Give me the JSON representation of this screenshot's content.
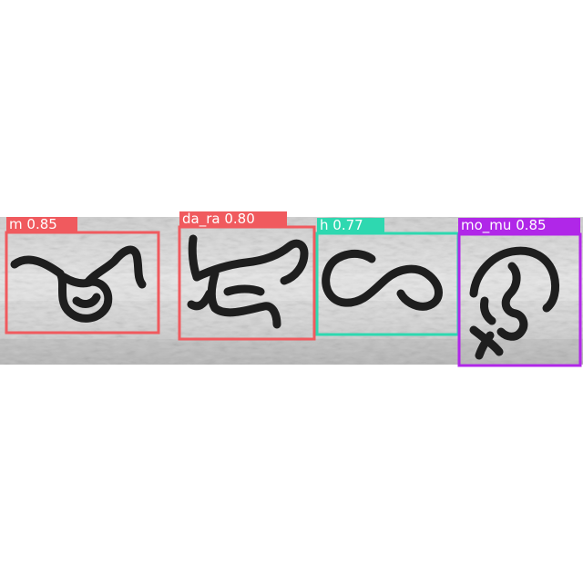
{
  "detections": [
    {
      "label": "m",
      "confidence": "0.85",
      "color": "#f05a5e"
    },
    {
      "label": "da_ra",
      "confidence": "0.80",
      "color": "#f05a5e"
    },
    {
      "label": "h",
      "confidence": "0.77",
      "color": "#2ed8b0"
    },
    {
      "label": "mo_mu",
      "confidence": "0.85",
      "color": "#b027e8"
    }
  ]
}
